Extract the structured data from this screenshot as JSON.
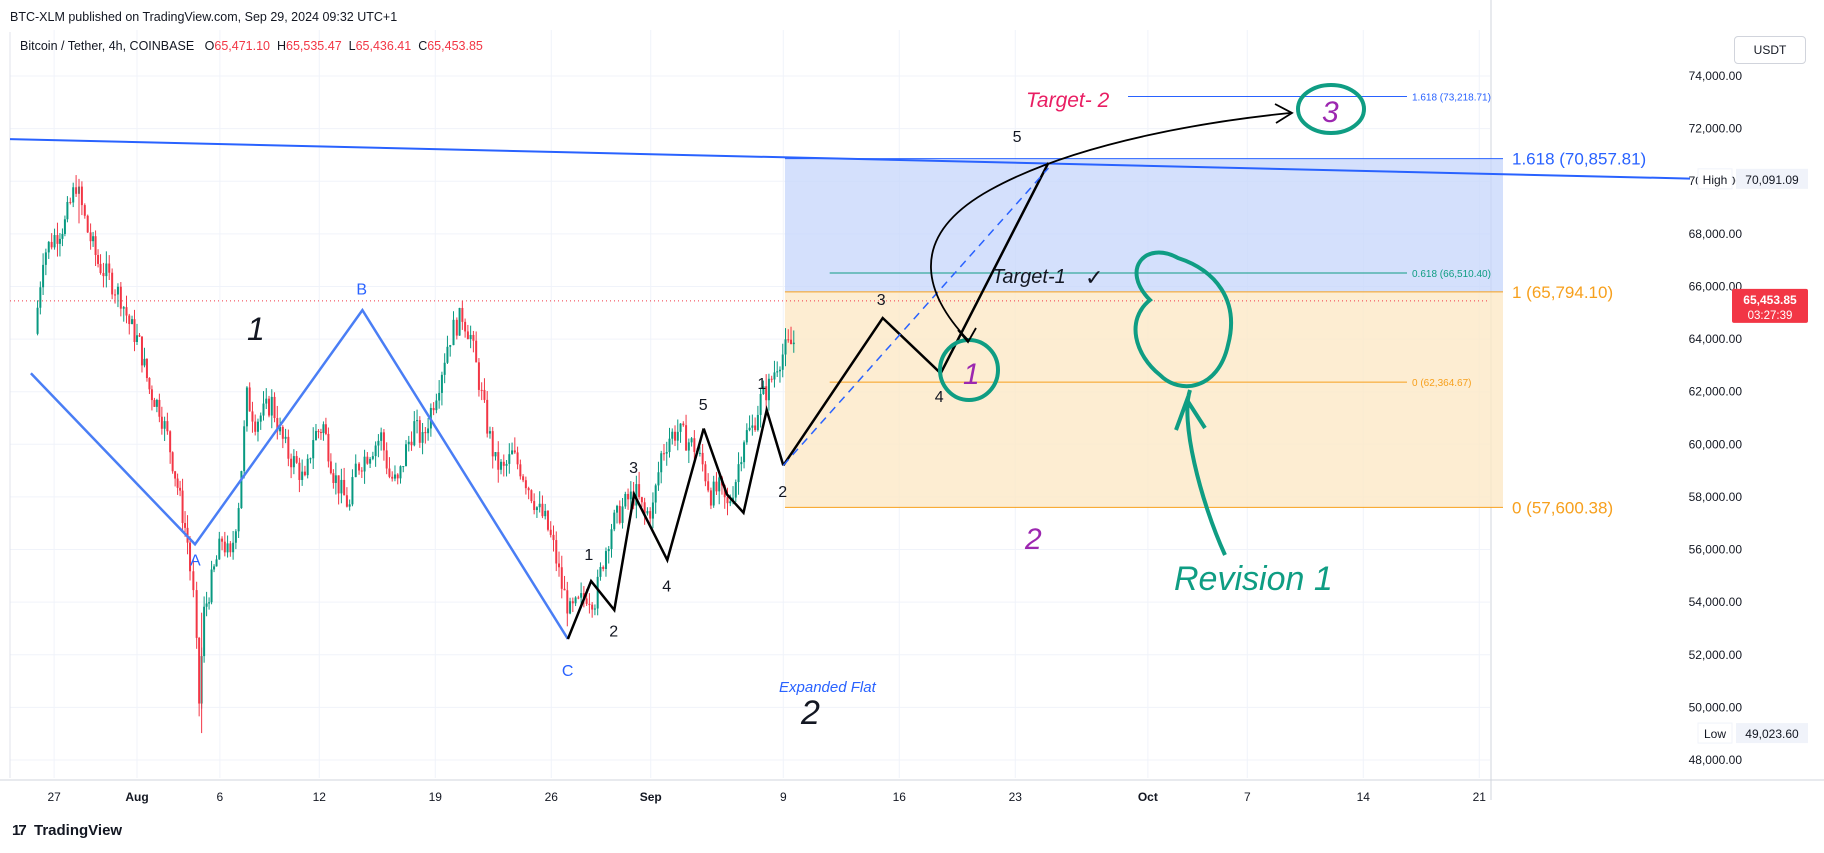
{
  "header": {
    "published": "BTC-XLM published on TradingView.com, Sep 29, 2024 09:32 UTC+1",
    "symbol": "Bitcoin / Tether, 4h, COINBASE",
    "ohlc": [
      {
        "k": "O",
        "v": "65,471.10"
      },
      {
        "k": "H",
        "v": "65,535.47"
      },
      {
        "k": "L",
        "v": "65,436.41"
      },
      {
        "k": "C",
        "v": "65,453.85"
      }
    ],
    "currency_button": "USDT"
  },
  "footer": {
    "brand": "TradingView",
    "mark": "17"
  },
  "colors": {
    "up": "#089981",
    "down": "#f23645",
    "blue": "#2962ff",
    "wave_blue": "#4a7ef5",
    "orange": "#f7a01d",
    "teal": "#0f9d83",
    "magenta": "#9c27b0",
    "pink": "#e91e63",
    "black": "#000000"
  },
  "chart_data": {
    "type": "candlestick",
    "ylim": [
      47000,
      75000
    ],
    "y_ticks": [
      48000,
      50000,
      52000,
      54000,
      56000,
      58000,
      60000,
      62000,
      64000,
      66000,
      68000,
      70000,
      72000,
      74000
    ],
    "y_tick_labels": [
      "48,000.00",
      "50,000.00",
      "52,000.00",
      "54,000.00",
      "56,000.00",
      "58,000.00",
      "60,000.00",
      "62,000.00",
      "64,000.00",
      "66,000.00",
      "68,000.00",
      "70,000.00",
      "72,000.00",
      "74,000.00"
    ],
    "x_ticks": [
      {
        "label": "27",
        "day": -5
      },
      {
        "label": "Aug",
        "day": 0
      },
      {
        "label": "6",
        "day": 5
      },
      {
        "label": "12",
        "day": 11
      },
      {
        "label": "19",
        "day": 18
      },
      {
        "label": "26",
        "day": 25
      },
      {
        "label": "Sep",
        "day": 31
      },
      {
        "label": "9",
        "day": 39
      },
      {
        "label": "16",
        "day": 46
      },
      {
        "label": "23",
        "day": 53
      },
      {
        "label": "Oct",
        "day": 61
      },
      {
        "label": "7",
        "day": 67
      },
      {
        "label": "14",
        "day": 74
      },
      {
        "label": "21",
        "day": 81
      }
    ],
    "price_path": [
      [
        -6.0,
        64200
      ],
      [
        -5.5,
        67200
      ],
      [
        -4.8,
        67900
      ],
      [
        -4.2,
        68400
      ],
      [
        -3.5,
        69900
      ],
      [
        -2.8,
        68100
      ],
      [
        -2.2,
        66900
      ],
      [
        -1.5,
        66300
      ],
      [
        -0.8,
        65600
      ],
      [
        -0.3,
        64600
      ],
      [
        0.3,
        63800
      ],
      [
        0.9,
        62100
      ],
      [
        1.5,
        61400
      ],
      [
        2.0,
        60300
      ],
      [
        2.6,
        58400
      ],
      [
        3.2,
        56300
      ],
      [
        3.6,
        54200
      ],
      [
        3.9,
        50200
      ],
      [
        4.2,
        53600
      ],
      [
        4.8,
        55200
      ],
      [
        5.3,
        56400
      ],
      [
        5.8,
        55600
      ],
      [
        6.3,
        57800
      ],
      [
        6.8,
        61800
      ],
      [
        7.3,
        60900
      ],
      [
        7.8,
        61200
      ],
      [
        8.3,
        61600
      ],
      [
        8.8,
        60400
      ],
      [
        9.3,
        59600
      ],
      [
        9.8,
        59200
      ],
      [
        10.3,
        58500
      ],
      [
        10.8,
        60300
      ],
      [
        11.4,
        60700
      ],
      [
        12.0,
        58900
      ],
      [
        12.5,
        58200
      ],
      [
        13.0,
        57600
      ],
      [
        13.4,
        59100
      ],
      [
        13.9,
        59500
      ],
      [
        14.4,
        59900
      ],
      [
        14.9,
        60300
      ],
      [
        15.4,
        58800
      ],
      [
        15.9,
        58500
      ],
      [
        16.4,
        59800
      ],
      [
        16.9,
        60700
      ],
      [
        17.4,
        60100
      ],
      [
        17.9,
        61300
      ],
      [
        18.4,
        62400
      ],
      [
        18.9,
        63800
      ],
      [
        19.3,
        64400
      ],
      [
        19.8,
        64900
      ],
      [
        20.3,
        64100
      ],
      [
        20.8,
        62400
      ],
      [
        21.3,
        60700
      ],
      [
        21.8,
        59300
      ],
      [
        22.3,
        59000
      ],
      [
        22.8,
        59600
      ],
      [
        23.3,
        59100
      ],
      [
        23.8,
        58400
      ],
      [
        24.3,
        57600
      ],
      [
        24.8,
        57100
      ],
      [
        25.3,
        56100
      ],
      [
        25.8,
        54600
      ],
      [
        26.3,
        53600
      ],
      [
        26.8,
        53900
      ],
      [
        27.3,
        54300
      ],
      [
        27.8,
        54100
      ],
      [
        28.3,
        55600
      ],
      [
        28.8,
        56900
      ],
      [
        29.3,
        57400
      ],
      [
        29.8,
        57900
      ],
      [
        30.3,
        58100
      ],
      [
        30.8,
        57300
      ],
      [
        31.3,
        57600
      ],
      [
        31.8,
        59600
      ],
      [
        32.3,
        60300
      ],
      [
        32.8,
        60500
      ],
      [
        33.3,
        60200
      ],
      [
        33.8,
        59900
      ],
      [
        34.3,
        59200
      ],
      [
        34.8,
        58100
      ],
      [
        35.3,
        58300
      ],
      [
        35.8,
        57600
      ],
      [
        36.3,
        58700
      ],
      [
        36.8,
        60300
      ],
      [
        37.3,
        60600
      ],
      [
        37.8,
        61700
      ],
      [
        38.3,
        62200
      ],
      [
        38.8,
        63100
      ],
      [
        39.3,
        63600
      ],
      [
        39.8,
        63900
      ]
    ],
    "elliott_waves": {
      "abc": {
        "points": [
          [
            -6.4,
            62700
          ],
          [
            3.5,
            56200
          ],
          [
            13.6,
            65100
          ],
          [
            26.0,
            52600
          ]
        ],
        "labels": [
          "A",
          "B",
          "C"
        ]
      },
      "impulse": {
        "points": [
          [
            26.0,
            52600
          ],
          [
            27.4,
            54800
          ],
          [
            28.8,
            53700
          ],
          [
            30.0,
            58100
          ],
          [
            32.0,
            55600
          ],
          [
            34.2,
            60600
          ]
        ],
        "labels": [
          "1",
          "2",
          "3",
          "4",
          "5"
        ]
      },
      "wave2": {
        "points": [
          [
            34.2,
            60600
          ],
          [
            35.6,
            58100
          ],
          [
            36.6,
            57400
          ],
          [
            38.0,
            61300
          ],
          [
            39.0,
            59200
          ]
        ],
        "labels": [
          "1",
          "2"
        ]
      },
      "projection": {
        "points": [
          [
            39.0,
            59200
          ],
          [
            45.0,
            64800
          ],
          [
            48.5,
            62700
          ],
          [
            55.0,
            70700
          ]
        ],
        "labels": [
          "3",
          "4",
          "5"
        ]
      }
    },
    "fib_levels": [
      {
        "text": "1.618 (70,857.81)",
        "value": 70857.81
      },
      {
        "text": "1 (65,794.10)",
        "value": 65794.1
      },
      {
        "text": "0 (57,600.38)",
        "value": 57600.38
      },
      {
        "text": "0.618 (66,510.40)",
        "value": 66510.4
      },
      {
        "text": "0 (62,364.67)",
        "value": 62364.67
      },
      {
        "text": "1.618 (73,218.71)",
        "value": 73218.71
      }
    ],
    "price_label": {
      "text": "65,453.85",
      "value": 65453.85,
      "countdown": "03:27:39"
    },
    "high_label": {
      "text": "High",
      "price_text": "70,091.09",
      "value": 70091.09
    },
    "low_label": {
      "text": "Low",
      "price_text": "49,023.60",
      "value": 49023.6
    },
    "annotations": {
      "big_1": "1",
      "big_2": "2",
      "magenta_1": "1",
      "magenta_2": "2",
      "magenta_3": "3",
      "expanded_flat": "Expanded Flat",
      "target_1": "Target-1",
      "target_1_check": "✓",
      "target_2": "Target- 2",
      "revision": "Revision 1"
    }
  }
}
